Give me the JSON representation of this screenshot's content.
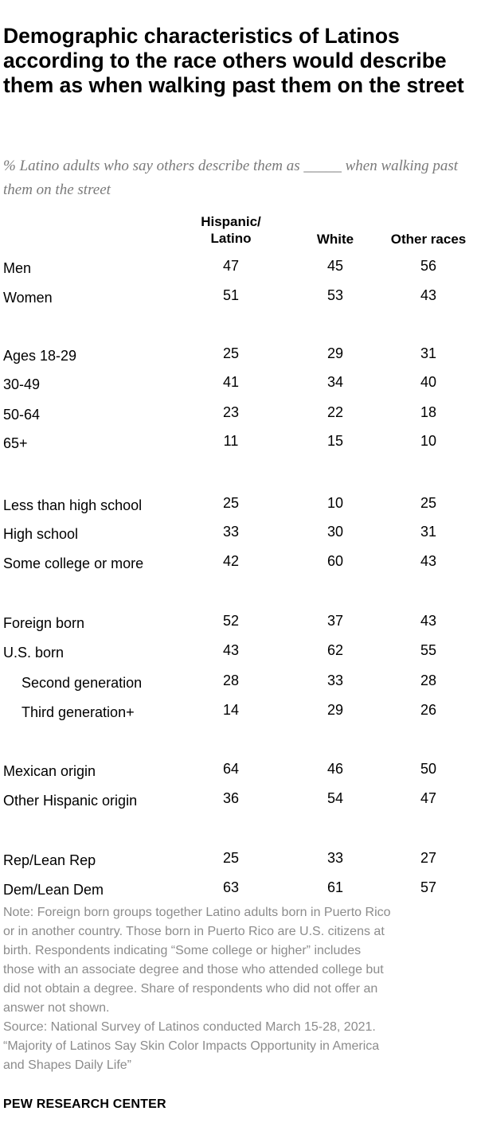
{
  "title": "Demographic characteristics of Latinos according to the race others would describe them as when walking past them on the street",
  "subtitle": "% Latino adults who say others describe them as _____ when walking past them on the street",
  "chart_data": {
    "type": "table",
    "columns": [
      {
        "key": "hispanic",
        "label_lines": [
          "Hispanic/",
          "Latino"
        ]
      },
      {
        "key": "white",
        "label_lines": [
          "White"
        ]
      },
      {
        "key": "other",
        "label_lines": [
          "Other races"
        ]
      }
    ],
    "rows": [
      {
        "label": "Men",
        "values": [
          47,
          45,
          56
        ]
      },
      {
        "label": "Women",
        "values": [
          51,
          53,
          43
        ]
      },
      {
        "label": "Ages 18-29",
        "values": [
          25,
          29,
          31
        ]
      },
      {
        "label": "30-49",
        "values": [
          41,
          34,
          40
        ]
      },
      {
        "label": "50-64",
        "values": [
          23,
          22,
          18
        ]
      },
      {
        "label": "65+",
        "values": [
          11,
          15,
          10
        ]
      },
      {
        "label": "Less than high school",
        "values": [
          25,
          10,
          25
        ]
      },
      {
        "label": "High school",
        "values": [
          33,
          30,
          31
        ]
      },
      {
        "label": "Some college or more",
        "values": [
          42,
          60,
          43
        ]
      },
      {
        "label": "Foreign born",
        "values": [
          52,
          37,
          43
        ]
      },
      {
        "label": "U.S. born",
        "values": [
          43,
          62,
          55
        ]
      },
      {
        "label": "Second generation",
        "values": [
          28,
          33,
          28
        ]
      },
      {
        "label": "Third generation+",
        "values": [
          14,
          29,
          26
        ]
      },
      {
        "label": "Mexican origin",
        "values": [
          64,
          46,
          50
        ]
      },
      {
        "label": "Other Hispanic origin",
        "values": [
          36,
          54,
          47
        ]
      },
      {
        "label": "Rep/Lean Rep",
        "values": [
          25,
          33,
          27
        ]
      },
      {
        "label": "Dem/Lean Dem",
        "values": [
          63,
          61,
          57
        ]
      }
    ]
  },
  "notes": [
    "Note: Foreign born groups together Latino adults born in Puerto Rico",
    "or in another country. Those born in Puerto Rico are U.S. citizens at",
    "birth. Respondents indicating “Some college or higher” includes",
    "those with an associate degree and those who attended college but",
    "did not obtain a degree. Share of respondents who did not offer an",
    "answer not shown.",
    "Source: National Survey of Latinos conducted March 15-28, 2021.",
    "“Majority of Latinos Say Skin Color Impacts Opportunity in America",
    "and Shapes Daily Life”"
  ],
  "footer": "PEW RESEARCH CENTER"
}
